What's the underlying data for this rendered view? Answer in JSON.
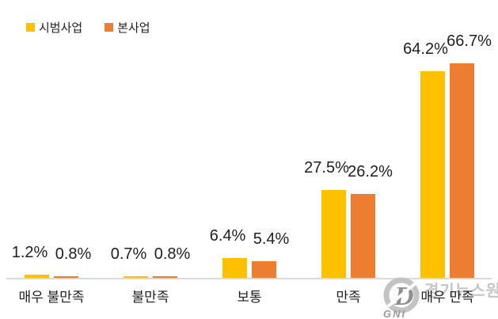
{
  "legend": {
    "items": [
      {
        "label": "시범사업",
        "color": "#FFC000"
      },
      {
        "label": "본사업",
        "color": "#ED7D31"
      }
    ]
  },
  "chart_data": {
    "type": "bar",
    "categories": [
      "매우 불만족",
      "불만족",
      "보통",
      "만족",
      "매우 만족"
    ],
    "series": [
      {
        "name": "시범사업",
        "color": "#FFC000",
        "values": [
          1.2,
          0.7,
          6.4,
          27.5,
          64.2
        ]
      },
      {
        "name": "본사업",
        "color": "#ED7D31",
        "values": [
          0.8,
          0.8,
          5.4,
          26.2,
          66.7
        ]
      }
    ],
    "value_suffix": "%",
    "data_labels": true,
    "title": "",
    "xlabel": "",
    "ylabel": "",
    "ylim": [
      0,
      70
    ],
    "grid": false,
    "legend_position": "top-left",
    "axis_line_color": "#d9d9d9"
  },
  "watermark": {
    "logo_letter": "D",
    "logo_text": "GNI",
    "name": "경기뉴스원",
    "color": "#c0c0c0"
  }
}
